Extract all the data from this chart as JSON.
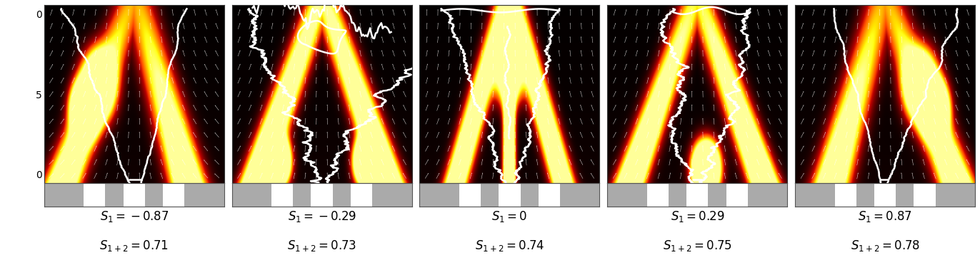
{
  "panels": [
    {
      "s1": "-0.87",
      "s12": "0.71"
    },
    {
      "s1": "-0.29",
      "s12": "0.73"
    },
    {
      "s1": "0",
      "s12": "0.74"
    },
    {
      "s1": "0.29",
      "s12": "0.75"
    },
    {
      "s1": "0.87",
      "s12": "0.78"
    }
  ],
  "label_fontsize": 12,
  "fig_width": 13.72,
  "fig_height": 3.72,
  "burner_gray": "#aaaaaa",
  "burner_slot_color": "#ffffff",
  "text_color": "#000000"
}
